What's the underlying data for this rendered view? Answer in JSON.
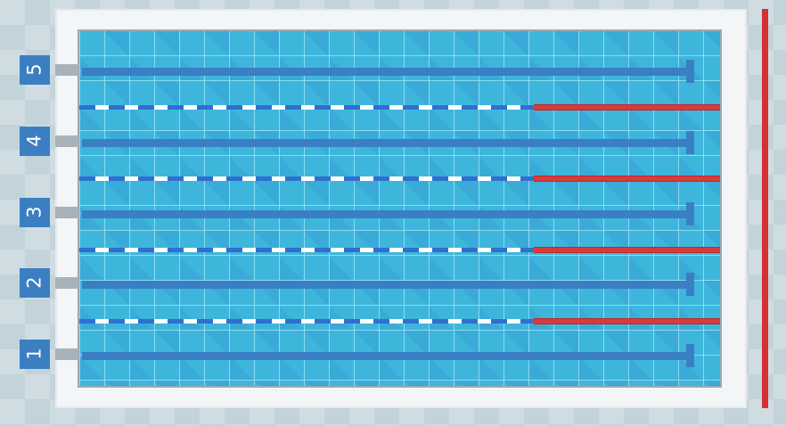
{
  "lanes": [
    {
      "number": "5"
    },
    {
      "number": "4"
    },
    {
      "number": "3"
    },
    {
      "number": "2"
    },
    {
      "number": "1"
    }
  ],
  "colors": {
    "water": "#3eb6dc",
    "lane_line": "#3a7ec4",
    "rope_blue": "#2f6fd0",
    "rope_red": "#d93a3a",
    "finish_line": "#d63030",
    "label_bg": "#3b7fc2"
  }
}
